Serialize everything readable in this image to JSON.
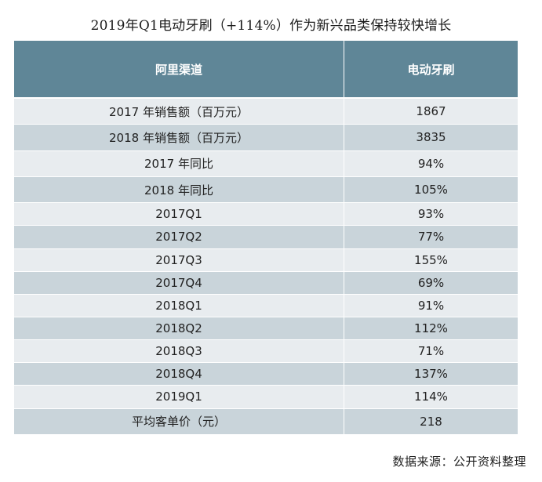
{
  "title": "2019年Q1电动牙刷（+114%）作为新兴品类保持较快增长",
  "table": {
    "headers": [
      "阿里渠道",
      "电动牙刷"
    ],
    "rows": [
      [
        "2017 年销售额（百万元）",
        "1867"
      ],
      [
        "2018 年销售额（百万元）",
        "3835"
      ],
      [
        "2017 年同比",
        "94%"
      ],
      [
        "2018 年同比",
        "105%"
      ],
      [
        "2017Q1",
        "93%"
      ],
      [
        "2017Q2",
        "77%"
      ],
      [
        "2017Q3",
        "155%"
      ],
      [
        "2017Q4",
        "69%"
      ],
      [
        "2018Q1",
        "91%"
      ],
      [
        "2018Q2",
        "112%"
      ],
      [
        "2018Q3",
        "71%"
      ],
      [
        "2018Q4",
        "137%"
      ],
      [
        "2019Q1",
        "114%"
      ],
      [
        "平均客单价（元）",
        "218"
      ]
    ]
  },
  "source": "数据来源：公开资料整理",
  "colors": {
    "header_bg": "#5f8697",
    "row_light": "#e8ecef",
    "row_dark": "#c9d4da"
  }
}
